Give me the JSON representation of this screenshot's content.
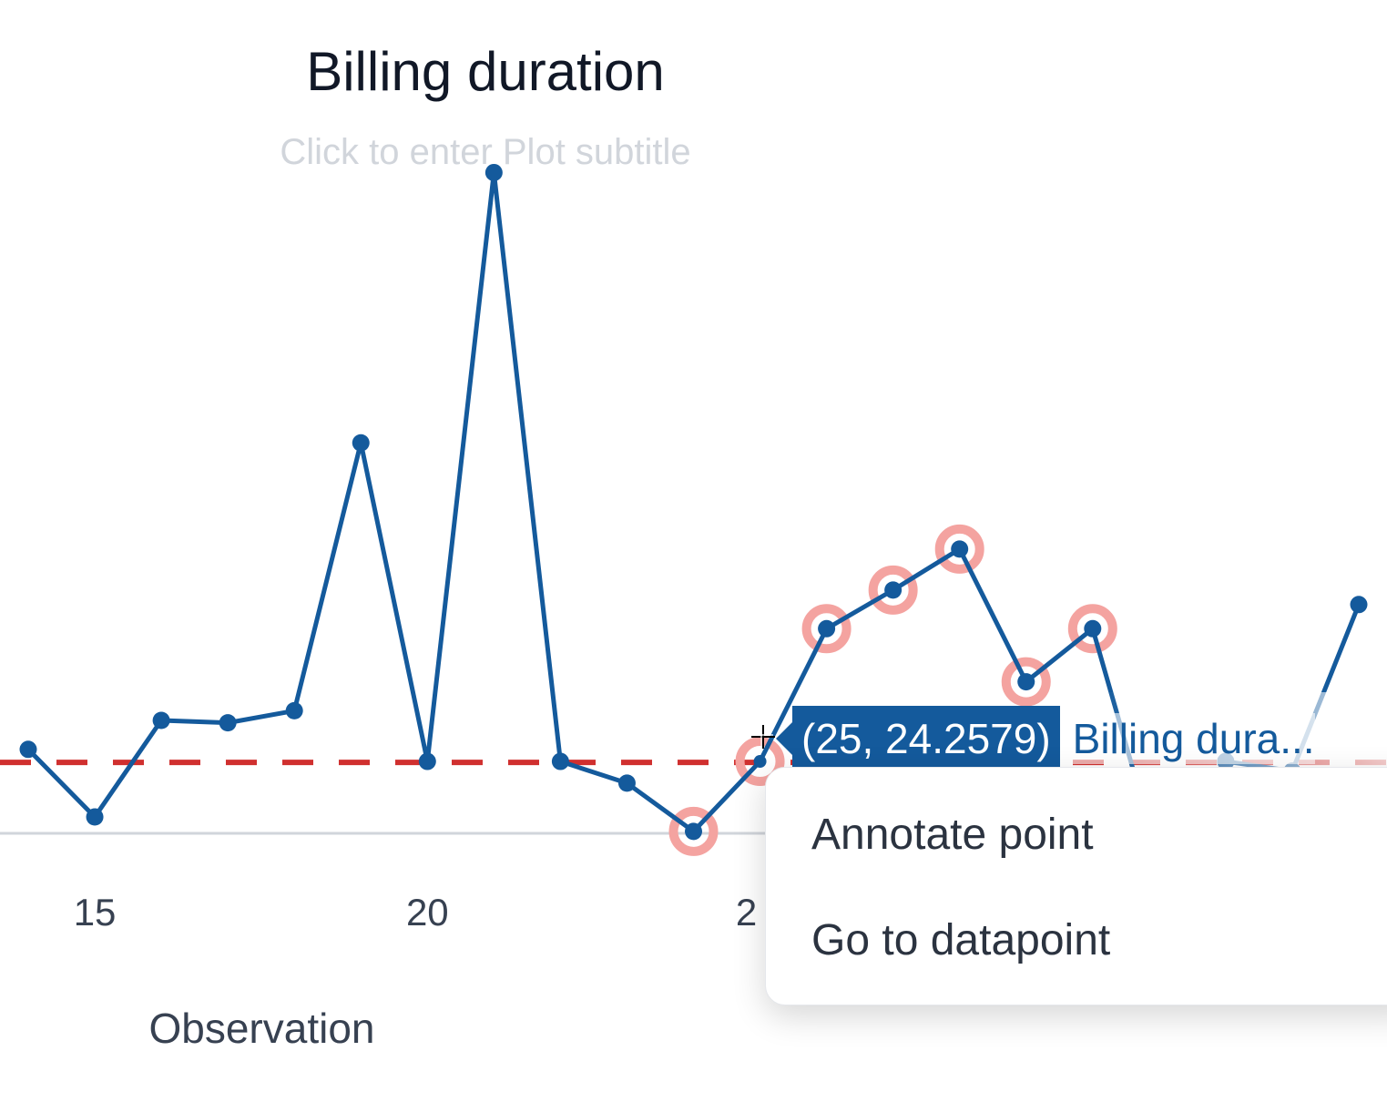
{
  "chart": {
    "title": "Billing duration",
    "subtitle_placeholder": "Click to enter Plot subtitle",
    "xlabel": "Observation",
    "x_ticks": [
      "15",
      "20",
      "2"
    ]
  },
  "tooltip": {
    "value": "(25, 24.2579)",
    "series_label": "Billing dura..."
  },
  "context_menu": {
    "items": [
      {
        "label": "Annotate point"
      },
      {
        "label": "Go to datapoint"
      }
    ]
  },
  "colors": {
    "series": "#145a9c",
    "reference_line": "#d0302f",
    "highlight_ring": "#f4a3a0",
    "axis": "#d1d5db"
  },
  "chart_data": {
    "type": "line",
    "xlabel": "Observation",
    "x": [
      14,
      15,
      16,
      17,
      18,
      19,
      20,
      21,
      22,
      23,
      24,
      25,
      26,
      27,
      28,
      29,
      30,
      31,
      32,
      33,
      34
    ],
    "series": [
      {
        "name": "Billing dura...",
        "values": [
          24.8,
          22.0,
          26.0,
          25.9,
          26.4,
          37.5,
          24.3,
          48.7,
          24.3,
          23.4,
          21.4,
          24.3,
          29.8,
          31.4,
          33.1,
          27.6,
          29.8,
          20.2,
          24.3,
          23.9,
          30.8
        ]
      }
    ],
    "highlighted_x": [
      24,
      25,
      26,
      27,
      28,
      29,
      30
    ],
    "reference_line": {
      "y": 24.2579,
      "style": "dashed"
    },
    "selected_point": {
      "x": 25,
      "y": 24.2579
    },
    "ylim": [
      20.0,
      52.0
    ],
    "grid": false,
    "legend": "none"
  }
}
